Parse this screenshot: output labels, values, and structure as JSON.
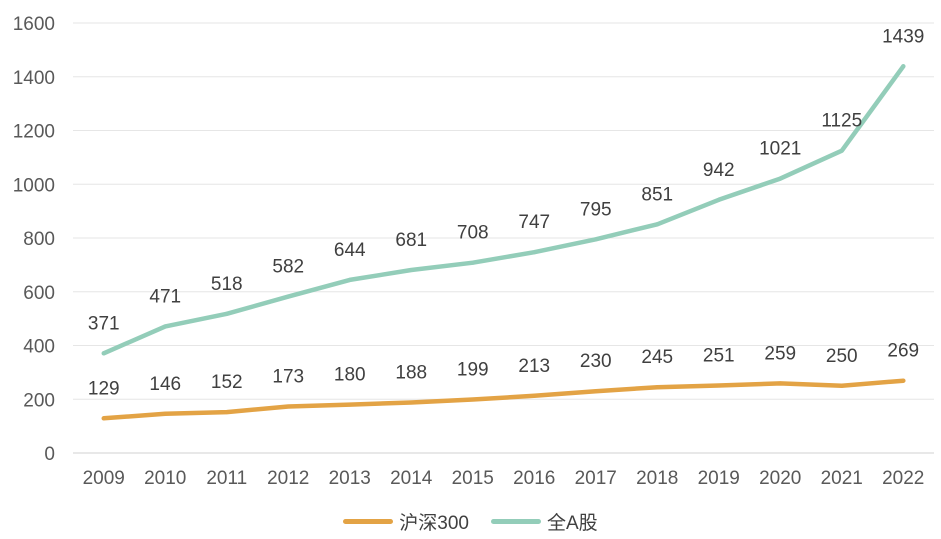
{
  "chart_data": {
    "type": "line",
    "title": "",
    "xlabel": "",
    "ylabel": "",
    "categories": [
      "2009",
      "2010",
      "2011",
      "2012",
      "2013",
      "2014",
      "2015",
      "2016",
      "2017",
      "2018",
      "2019",
      "2020",
      "2021",
      "2022"
    ],
    "ylim": [
      0,
      1600
    ],
    "yticks": [
      0,
      200,
      400,
      600,
      800,
      1000,
      1200,
      1400,
      1600
    ],
    "grid": true,
    "legend_position": "bottom",
    "series": [
      {
        "name": "沪深300",
        "color": "#E3A345",
        "values": [
          129,
          146,
          152,
          173,
          180,
          188,
          199,
          213,
          230,
          245,
          251,
          259,
          250,
          269
        ]
      },
      {
        "name": "全A股",
        "color": "#93CDB9",
        "values": [
          371,
          471,
          518,
          582,
          644,
          681,
          708,
          747,
          795,
          851,
          942,
          1021,
          1125,
          1439
        ]
      }
    ]
  }
}
